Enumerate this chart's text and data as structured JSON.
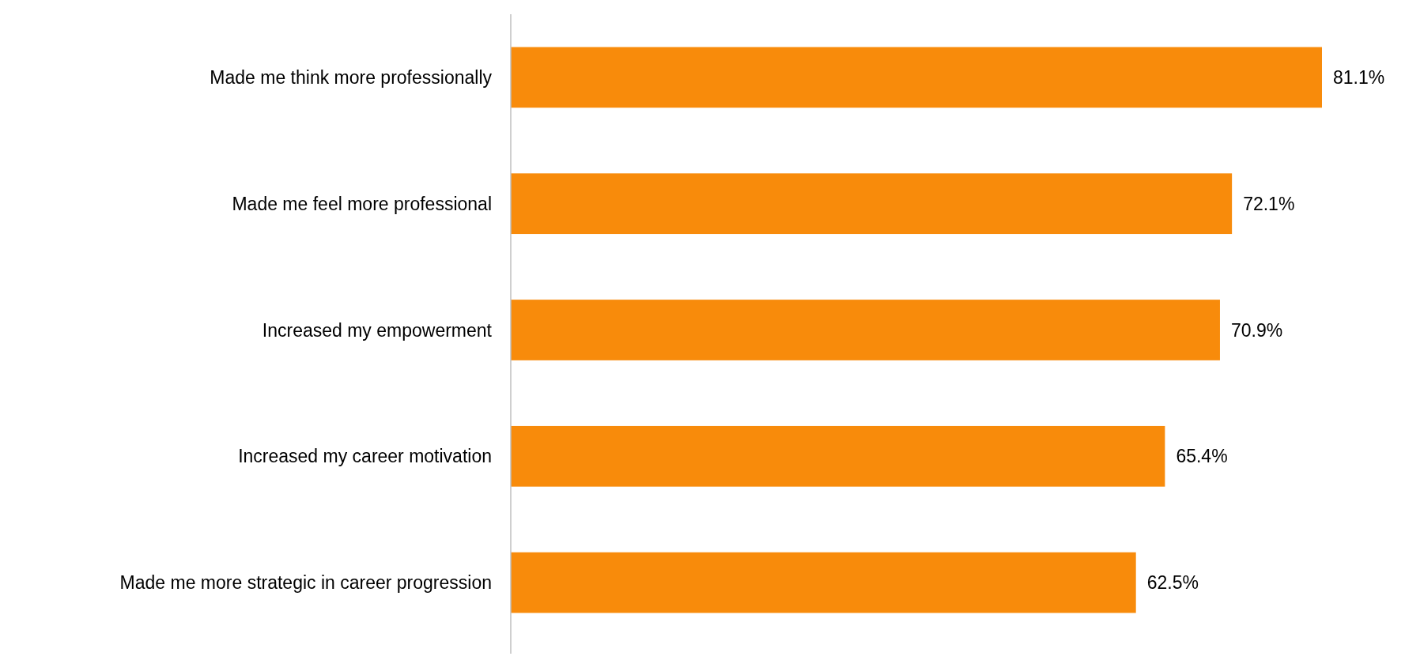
{
  "chart_data": {
    "type": "bar",
    "orientation": "horizontal",
    "categories": [
      "Made me think more professionally",
      "Made me feel more professional",
      "Increased my empowerment",
      "Increased my career motivation",
      "Made me more strategic in career progression"
    ],
    "values": [
      81.1,
      72.1,
      70.9,
      65.4,
      62.5
    ],
    "value_labels": [
      "81.1%",
      "72.1%",
      "70.9%",
      "65.4%",
      "62.5%"
    ],
    "color": "#f88b0b"
  }
}
